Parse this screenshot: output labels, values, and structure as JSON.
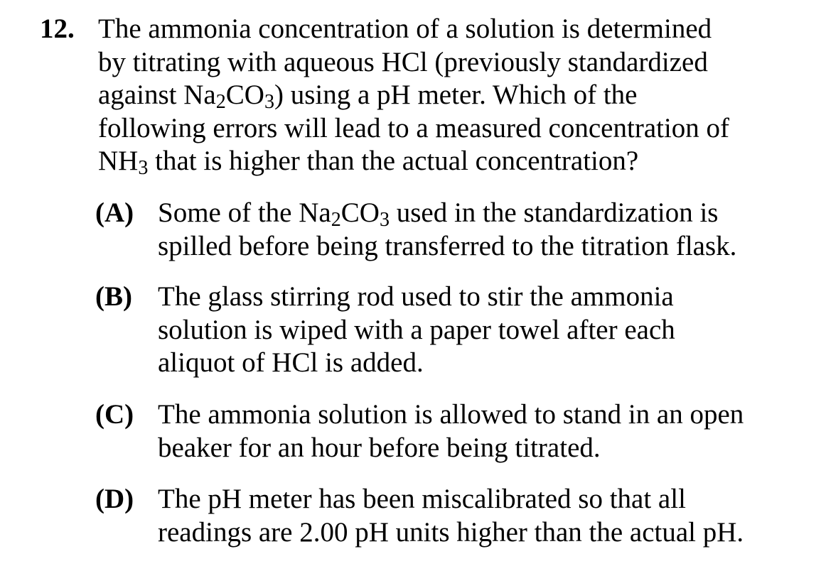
{
  "question": {
    "number": "12.",
    "lines": [
      [
        "The ammonia concentration of a solution is determined"
      ],
      [
        "by titrating with aqueous HCl (previously standardized"
      ],
      [
        "against Na",
        {
          "sub": "2"
        },
        "CO",
        {
          "sub": "3"
        },
        ") using a pH meter.  Which of the"
      ],
      [
        "following errors will lead to a measured concentration of"
      ],
      [
        "NH",
        {
          "sub": "3"
        },
        " that is higher than the actual concentration?"
      ]
    ]
  },
  "choices": [
    {
      "letter": "(A)",
      "lines": [
        [
          "Some of the Na",
          {
            "sub": "2"
          },
          "CO",
          {
            "sub": "3"
          },
          " used in the standardization is"
        ],
        [
          "spilled before being transferred to the titration flask."
        ]
      ]
    },
    {
      "letter": "(B)",
      "lines": [
        [
          "The glass stirring rod used to stir the ammonia"
        ],
        [
          "solution is wiped with a paper towel after each"
        ],
        [
          "aliquot of HCl is added."
        ]
      ]
    },
    {
      "letter": "(C)",
      "lines": [
        [
          "The ammonia solution is allowed to stand in an open"
        ],
        [
          "beaker for an hour before being titrated."
        ]
      ]
    },
    {
      "letter": "(D)",
      "lines": [
        [
          "The pH meter has been miscalibrated so that all"
        ],
        [
          "readings are 2.00 pH units higher than the actual pH."
        ]
      ]
    }
  ]
}
